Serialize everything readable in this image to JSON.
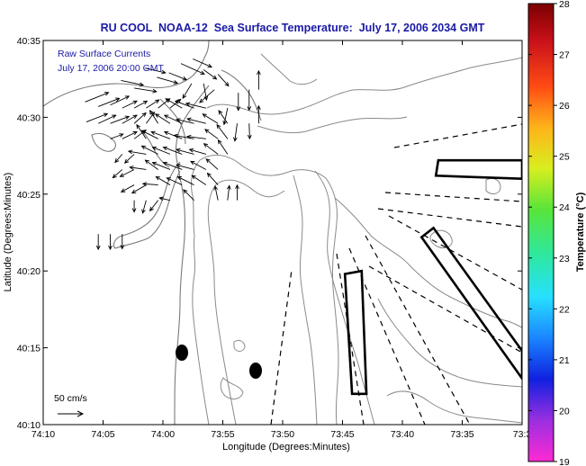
{
  "chart_data": {
    "type": "map",
    "title": "RU COOL  NOAA-12  Sea Surface Temperature:  July 17, 2006 2034 GMT",
    "xlabel": "Longitude (Degrees:Minutes)",
    "ylabel": "Latitude (Degrees:Minutes)",
    "x_ticks": [
      "74:10",
      "74:05",
      "74:00",
      "73:55",
      "73:50",
      "73:45",
      "73:40",
      "73:35",
      "73:3"
    ],
    "y_ticks": [
      "40:35",
      "40:30",
      "40:25",
      "40:20",
      "40:15",
      "40:10"
    ],
    "xlim_minutes": [
      0,
      40
    ],
    "ylim_minutes": [
      0,
      25
    ],
    "grid": false,
    "annotation_lines": [
      "Raw Surface Currents",
      "July 17, 2006 20:00 GMT"
    ],
    "vector_scale_label": "50 cm/s",
    "colorbar": {
      "title": "Temperature (°C)",
      "ticks": [
        "28",
        "27",
        "26",
        "25",
        "24",
        "23",
        "22",
        "21",
        "20",
        "19"
      ],
      "min": 19,
      "max": 28,
      "colors": [
        "#ff2ad4",
        "#9a2fe0",
        "#1020e0",
        "#1a86ff",
        "#27e0ff",
        "#2ee8a0",
        "#58e53a",
        "#d8ee1e",
        "#ffb31a",
        "#ff4a14",
        "#c8101a",
        "#7a0000"
      ]
    },
    "markers": [
      {
        "type": "filled-ellipse",
        "lon_min_from_west": 11.8,
        "lat_min_from_south": 5.9
      },
      {
        "type": "filled-ellipse",
        "lon_min_from_west": 16.2,
        "lat_min_from_south": 4.0
      }
    ],
    "current_vectors": [
      {
        "x": 11.5,
        "y": 23.5,
        "u": 4,
        "v": -1.8
      },
      {
        "x": 12.5,
        "y": 23.8,
        "u": 3.2,
        "v": -1.4
      },
      {
        "x": 13.4,
        "y": 23.1,
        "u": 2.2,
        "v": -1.6
      },
      {
        "x": 14.6,
        "y": 22.8,
        "u": 1.8,
        "v": -2
      },
      {
        "x": 8.5,
        "y": 23.2,
        "u": 3.5,
        "v": -0.8
      },
      {
        "x": 9.5,
        "y": 22.6,
        "u": 3.5,
        "v": -1
      },
      {
        "x": 10.5,
        "y": 22.9,
        "u": 3,
        "v": -1.2
      },
      {
        "x": 6.5,
        "y": 22.4,
        "u": 3.8,
        "v": -0.8
      },
      {
        "x": 7.6,
        "y": 21.9,
        "u": 3.8,
        "v": -0.6
      },
      {
        "x": 12.4,
        "y": 22.2,
        "u": -1.5,
        "v": -2.5
      },
      {
        "x": 13.4,
        "y": 22.2,
        "u": 0.5,
        "v": -2.8
      },
      {
        "x": 14.3,
        "y": 21.8,
        "u": -2.5,
        "v": -2.2
      },
      {
        "x": 3.5,
        "y": 21.0,
        "u": 4,
        "v": 1.6
      },
      {
        "x": 4.6,
        "y": 20.7,
        "u": 3.6,
        "v": 1.4
      },
      {
        "x": 5.6,
        "y": 20.8,
        "u": 3.2,
        "v": 1.5
      },
      {
        "x": 6.6,
        "y": 20.6,
        "u": 2.5,
        "v": 1.2
      },
      {
        "x": 7.6,
        "y": 20.6,
        "u": 2.2,
        "v": 1.2
      },
      {
        "x": 8.6,
        "y": 20.6,
        "u": 2.2,
        "v": 1.4
      },
      {
        "x": 9.6,
        "y": 20.6,
        "u": 2,
        "v": 1.6
      },
      {
        "x": 10.6,
        "y": 20.6,
        "u": 1.8,
        "v": 1.5
      },
      {
        "x": 11.6,
        "y": 20.6,
        "u": -2.8,
        "v": 1.6
      },
      {
        "x": 12.6,
        "y": 20.6,
        "u": -3.2,
        "v": 1.2
      },
      {
        "x": 13.6,
        "y": 20.6,
        "u": -3.4,
        "v": 0.8
      },
      {
        "x": 3.6,
        "y": 19.7,
        "u": 3.6,
        "v": 1.4
      },
      {
        "x": 4.6,
        "y": 19.6,
        "u": 3,
        "v": 1.4
      },
      {
        "x": 5.6,
        "y": 19.6,
        "u": 3.2,
        "v": 1.2
      },
      {
        "x": 6.6,
        "y": 19.6,
        "u": 2.5,
        "v": 1.4
      },
      {
        "x": 7.6,
        "y": 19.6,
        "u": 2,
        "v": 1.8
      },
      {
        "x": 8.6,
        "y": 19.6,
        "u": 1.4,
        "v": 1.9
      },
      {
        "x": 9.6,
        "y": 19.6,
        "u": -1.4,
        "v": 2.2
      },
      {
        "x": 10.6,
        "y": 19.6,
        "u": -2.5,
        "v": 1.6
      },
      {
        "x": 11.6,
        "y": 19.6,
        "u": -3,
        "v": 1.4
      },
      {
        "x": 12.6,
        "y": 19.6,
        "u": -3,
        "v": 0.7
      },
      {
        "x": 13.6,
        "y": 19.6,
        "u": -3.2,
        "v": 0.8
      },
      {
        "x": 14.6,
        "y": 19.6,
        "u": -2.6,
        "v": 1.6
      },
      {
        "x": 15.4,
        "y": 19.6,
        "u": -1.5,
        "v": 2.2
      },
      {
        "x": 5.6,
        "y": 18.6,
        "u": 2.2,
        "v": 0.8
      },
      {
        "x": 6.6,
        "y": 18.6,
        "u": 2.5,
        "v": 1.2
      },
      {
        "x": 7.6,
        "y": 18.6,
        "u": 2,
        "v": 1.5
      },
      {
        "x": 8.6,
        "y": 18.6,
        "u": -1.6,
        "v": 2.4
      },
      {
        "x": 9.6,
        "y": 18.6,
        "u": -2.8,
        "v": 1.4
      },
      {
        "x": 10.6,
        "y": 18.6,
        "u": -3.2,
        "v": 1.2
      },
      {
        "x": 11.6,
        "y": 18.6,
        "u": -3,
        "v": 1.2
      },
      {
        "x": 12.6,
        "y": 18.6,
        "u": -3.4,
        "v": 0.6
      },
      {
        "x": 13.6,
        "y": 18.6,
        "u": -3.2,
        "v": 0.4
      },
      {
        "x": 14.6,
        "y": 18.6,
        "u": -2.2,
        "v": 1.6
      },
      {
        "x": 15.4,
        "y": 18.6,
        "u": -1.8,
        "v": 2.4
      },
      {
        "x": 6.6,
        "y": 17.6,
        "u": -1.2,
        "v": -1.4
      },
      {
        "x": 7.6,
        "y": 17.6,
        "u": -1.6,
        "v": -1.5
      },
      {
        "x": 8.6,
        "y": 17.6,
        "u": -3,
        "v": 0.5
      },
      {
        "x": 9.6,
        "y": 17.6,
        "u": -2.8,
        "v": 1.4
      },
      {
        "x": 10.6,
        "y": 17.6,
        "u": -3,
        "v": 1.2
      },
      {
        "x": 11.6,
        "y": 17.6,
        "u": -3.2,
        "v": 1.2
      },
      {
        "x": 12.6,
        "y": 17.6,
        "u": -3,
        "v": 0.8
      },
      {
        "x": 13.6,
        "y": 17.6,
        "u": -2.8,
        "v": 0.8
      },
      {
        "x": 14.6,
        "y": 17.6,
        "u": -2.4,
        "v": 1.8
      },
      {
        "x": 15.4,
        "y": 17.6,
        "u": -1.6,
        "v": 2.4
      },
      {
        "x": 6.6,
        "y": 16.6,
        "u": -1.6,
        "v": -1.4
      },
      {
        "x": 7.6,
        "y": 16.6,
        "u": -2.4,
        "v": -1.2
      },
      {
        "x": 8.6,
        "y": 16.6,
        "u": -2.8,
        "v": 0.4
      },
      {
        "x": 9.6,
        "y": 16.6,
        "u": -2.2,
        "v": 1.6
      },
      {
        "x": 10.6,
        "y": 16.6,
        "u": -3,
        "v": 1.2
      },
      {
        "x": 11.6,
        "y": 16.6,
        "u": -3.2,
        "v": 1.2
      },
      {
        "x": 12.6,
        "y": 16.6,
        "u": -3,
        "v": 0.8
      },
      {
        "x": 13.6,
        "y": 16.6,
        "u": -2.6,
        "v": 1.4
      },
      {
        "x": 14.6,
        "y": 16.6,
        "u": -2,
        "v": 1.8
      },
      {
        "x": 7.6,
        "y": 15.6,
        "u": -2.2,
        "v": -1.2
      },
      {
        "x": 8.6,
        "y": 15.6,
        "u": -2.4,
        "v": -1.4
      },
      {
        "x": 9.6,
        "y": 15.6,
        "u": -2.6,
        "v": 0.2
      },
      {
        "x": 10.6,
        "y": 15.6,
        "u": -2.4,
        "v": 1.4
      },
      {
        "x": 11.6,
        "y": 15.6,
        "u": -2.6,
        "v": 1.2
      },
      {
        "x": 12.6,
        "y": 15.6,
        "u": -2.8,
        "v": 1.4
      },
      {
        "x": 13.6,
        "y": 15.6,
        "u": -2.4,
        "v": 1.6
      },
      {
        "x": 14.6,
        "y": 15.6,
        "u": -1.8,
        "v": 2
      },
      {
        "x": 7.6,
        "y": 14.6,
        "u": 0,
        "v": -2
      },
      {
        "x": 8.6,
        "y": 14.6,
        "u": -0.6,
        "v": -2.2
      },
      {
        "x": 9.6,
        "y": 14.6,
        "u": -1.4,
        "v": -1.8
      },
      {
        "x": 10.6,
        "y": 14.6,
        "u": -1.8,
        "v": 0.4
      },
      {
        "x": 12.6,
        "y": 14.6,
        "u": -1.8,
        "v": 1.8
      },
      {
        "x": 14.6,
        "y": 14.6,
        "u": -0.5,
        "v": 2.4
      },
      {
        "x": 15.4,
        "y": 14.6,
        "u": 0.3,
        "v": 2.5
      },
      {
        "x": 16.2,
        "y": 14.6,
        "u": 0,
        "v": 2.6
      },
      {
        "x": 4.6,
        "y": 12.4,
        "u": 0,
        "v": -2.6
      },
      {
        "x": 5.6,
        "y": 12.4,
        "u": 0,
        "v": -2.6
      },
      {
        "x": 6.6,
        "y": 12.4,
        "u": 0,
        "v": -2.5
      },
      {
        "x": 15.4,
        "y": 20.6,
        "u": -0.6,
        "v": -2.8
      },
      {
        "x": 16.3,
        "y": 21.6,
        "u": 0,
        "v": -3
      },
      {
        "x": 17.2,
        "y": 21.8,
        "u": 0,
        "v": -3.5
      },
      {
        "x": 18.0,
        "y": 21.8,
        "u": 0,
        "v": 3.2
      },
      {
        "x": 16.2,
        "y": 19.6,
        "u": -0.4,
        "v": -3
      },
      {
        "x": 17.2,
        "y": 19.6,
        "u": 0.1,
        "v": -2.6
      },
      {
        "x": 18.0,
        "y": 19.6,
        "u": 0,
        "v": 3.0
      }
    ],
    "cells": [
      {
        "label": "small rectangle",
        "corners": [
          [
            25.8,
            2.0
          ],
          [
            27.0,
            2.0
          ],
          [
            26.6,
            10.0
          ],
          [
            25.2,
            9.8
          ]
        ]
      },
      {
        "label": "upper-right rectangle",
        "corners": [
          [
            33.0,
            17.2
          ],
          [
            40.0,
            17.2
          ],
          [
            40.0,
            16.0
          ],
          [
            32.8,
            16.2
          ]
        ]
      },
      {
        "label": "lower-right rectangle",
        "corners": [
          [
            31.6,
            12.2
          ],
          [
            32.6,
            12.8
          ],
          [
            40.0,
            4.8
          ],
          [
            40.0,
            3.0
          ]
        ]
      }
    ]
  }
}
